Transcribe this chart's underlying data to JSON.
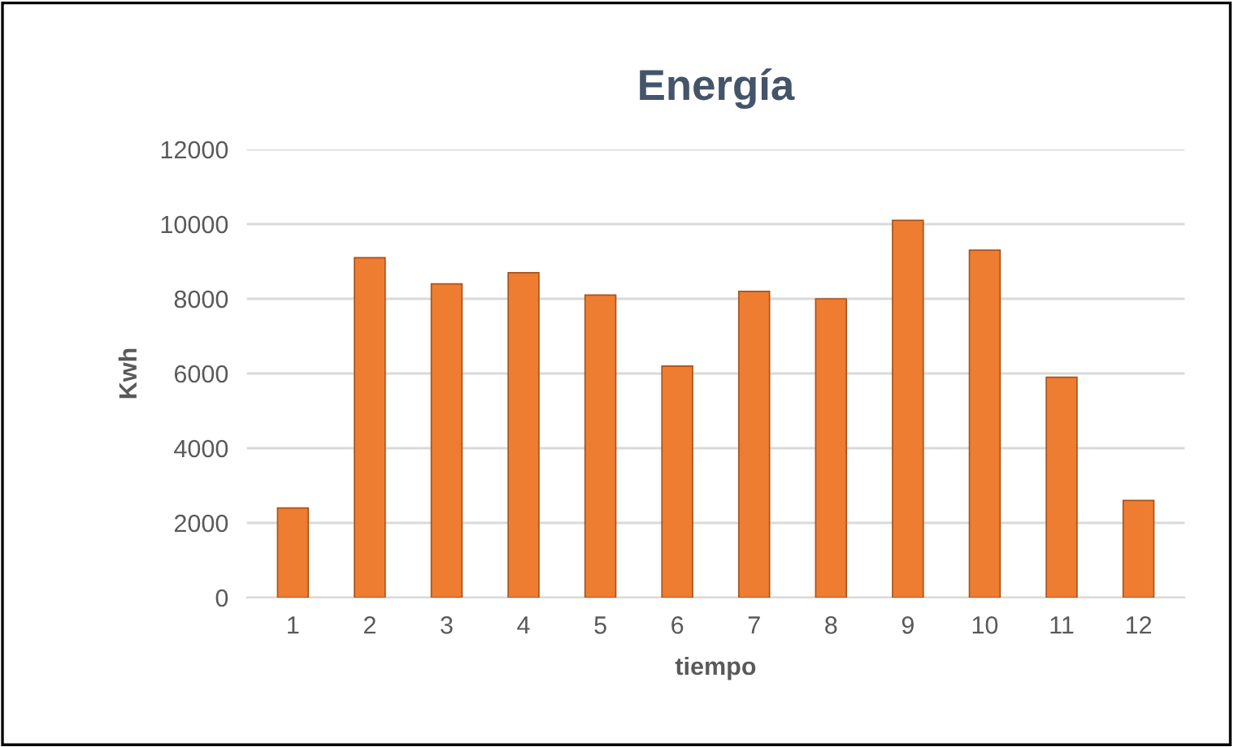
{
  "chart_data": {
    "type": "bar",
    "title": "Energía",
    "xlabel": "tiempo",
    "ylabel": "Kwh",
    "categories": [
      "1",
      "2",
      "3",
      "4",
      "5",
      "6",
      "7",
      "8",
      "9",
      "10",
      "11",
      "12"
    ],
    "values": [
      2400,
      9100,
      8400,
      8700,
      8100,
      6200,
      8200,
      8000,
      10100,
      9300,
      5900,
      2600
    ],
    "color": "#ee7d31",
    "ylim": [
      0,
      12000
    ],
    "yticks": [
      0,
      2000,
      4000,
      6000,
      8000,
      10000,
      12000
    ],
    "grid": "y",
    "legend": false
  }
}
